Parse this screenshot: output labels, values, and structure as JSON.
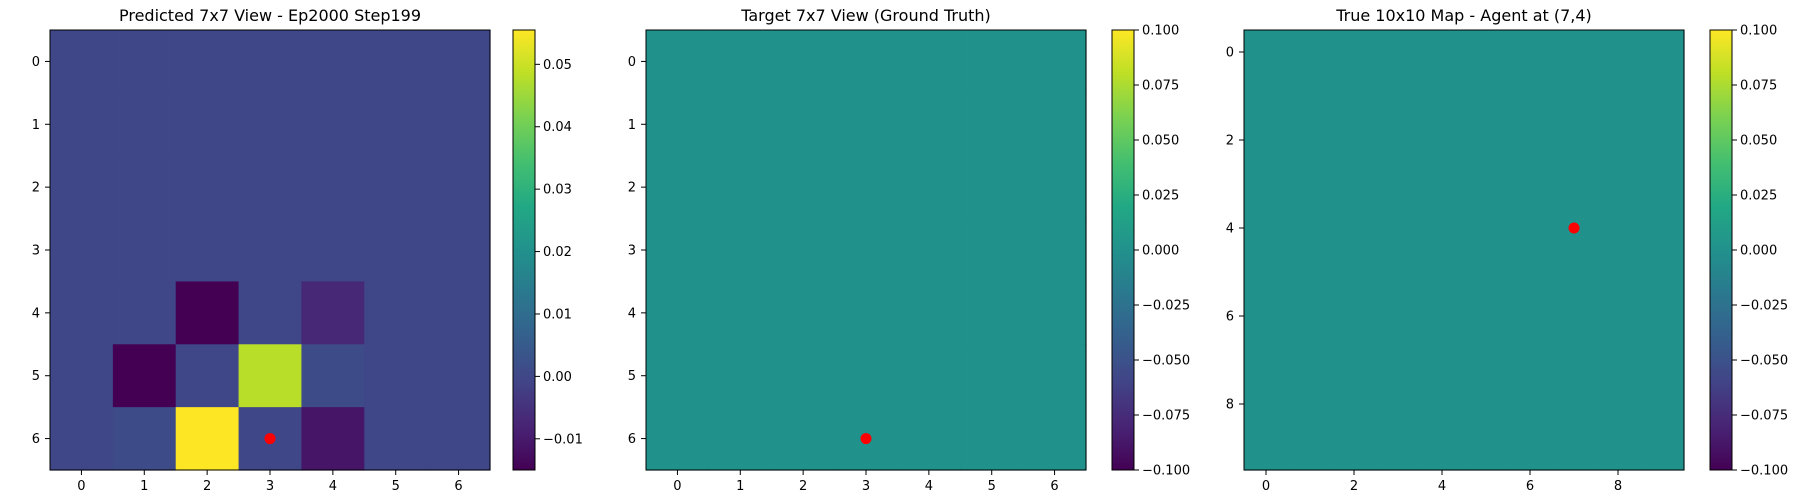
{
  "chart_data": [
    {
      "type": "heatmap",
      "title": "Predicted 7x7 View - Ep2000 Step199",
      "rows": 7,
      "cols": 7,
      "x_ticks": [
        0,
        1,
        2,
        3,
        4,
        5,
        6
      ],
      "y_ticks": [
        0,
        1,
        2,
        3,
        4,
        5,
        6
      ],
      "values": [
        [
          0,
          0,
          0,
          0,
          0,
          0,
          0
        ],
        [
          0,
          0,
          0,
          0,
          0,
          0,
          0
        ],
        [
          0,
          0,
          0,
          0,
          0,
          0,
          0
        ],
        [
          0,
          0,
          0,
          0,
          0,
          0,
          0
        ],
        [
          0,
          0,
          -0.015,
          0,
          -0.007,
          0,
          0
        ],
        [
          0,
          -0.015,
          0,
          0.048,
          0.001,
          0,
          0
        ],
        [
          0,
          0.001,
          0.0555,
          0,
          -0.011,
          0,
          0
        ]
      ],
      "colorbar": {
        "vmin": -0.015,
        "vmax": 0.0555,
        "ticks": [
          -0.01,
          0.0,
          0.01,
          0.02,
          0.03,
          0.04,
          0.05
        ],
        "tick_labels": [
          "−0.01",
          "0.00",
          "0.01",
          "0.02",
          "0.03",
          "0.04",
          "0.05"
        ],
        "colormap": "viridis"
      },
      "marker": {
        "x": 3,
        "y": 6,
        "color": "#ff0000"
      }
    },
    {
      "type": "heatmap",
      "title": "Target 7x7 View (Ground Truth)",
      "rows": 7,
      "cols": 7,
      "x_ticks": [
        0,
        1,
        2,
        3,
        4,
        5,
        6
      ],
      "y_ticks": [
        0,
        1,
        2,
        3,
        4,
        5,
        6
      ],
      "values": [
        [
          0,
          0,
          0,
          0,
          0,
          0,
          0
        ],
        [
          0,
          0,
          0,
          0,
          0,
          0,
          0
        ],
        [
          0,
          0,
          0,
          0,
          0,
          0,
          0
        ],
        [
          0,
          0,
          0,
          0,
          0,
          0,
          0
        ],
        [
          0,
          0,
          0,
          0,
          0,
          0,
          0
        ],
        [
          0,
          0,
          0,
          0,
          0,
          0,
          0
        ],
        [
          0,
          0,
          0,
          0,
          0,
          0,
          0
        ]
      ],
      "colorbar": {
        "vmin": -0.1,
        "vmax": 0.1,
        "ticks": [
          -0.1,
          -0.075,
          -0.05,
          -0.025,
          0.0,
          0.025,
          0.05,
          0.075,
          0.1
        ],
        "tick_labels": [
          "−0.100",
          "−0.075",
          "−0.050",
          "−0.025",
          "0.000",
          "0.025",
          "0.050",
          "0.075",
          "0.100"
        ],
        "colormap": "viridis"
      },
      "marker": {
        "x": 3,
        "y": 6,
        "color": "#ff0000"
      }
    },
    {
      "type": "heatmap",
      "title": "True 10x10 Map - Agent at (7,4)",
      "rows": 10,
      "cols": 10,
      "x_ticks": [
        0,
        2,
        4,
        6,
        8
      ],
      "y_ticks": [
        0,
        2,
        4,
        6,
        8
      ],
      "values": [
        [
          0,
          0,
          0,
          0,
          0,
          0,
          0,
          0,
          0,
          0
        ],
        [
          0,
          0,
          0,
          0,
          0,
          0,
          0,
          0,
          0,
          0
        ],
        [
          0,
          0,
          0,
          0,
          0,
          0,
          0,
          0,
          0,
          0
        ],
        [
          0,
          0,
          0,
          0,
          0,
          0,
          0,
          0,
          0,
          0
        ],
        [
          0,
          0,
          0,
          0,
          0,
          0,
          0,
          0,
          0,
          0
        ],
        [
          0,
          0,
          0,
          0,
          0,
          0,
          0,
          0,
          0,
          0
        ],
        [
          0,
          0,
          0,
          0,
          0,
          0,
          0,
          0,
          0,
          0
        ],
        [
          0,
          0,
          0,
          0,
          0,
          0,
          0,
          0,
          0,
          0
        ],
        [
          0,
          0,
          0,
          0,
          0,
          0,
          0,
          0,
          0,
          0
        ],
        [
          0,
          0,
          0,
          0,
          0,
          0,
          0,
          0,
          0,
          0
        ]
      ],
      "colorbar": {
        "vmin": -0.1,
        "vmax": 0.1,
        "ticks": [
          -0.1,
          -0.075,
          -0.05,
          -0.025,
          0.0,
          0.025,
          0.05,
          0.075,
          0.1
        ],
        "tick_labels": [
          "−0.100",
          "−0.075",
          "−0.050",
          "−0.025",
          "0.000",
          "0.025",
          "0.050",
          "0.075",
          "0.100"
        ],
        "colormap": "viridis"
      },
      "marker": {
        "x": 7,
        "y": 4,
        "color": "#ff0000"
      }
    }
  ]
}
